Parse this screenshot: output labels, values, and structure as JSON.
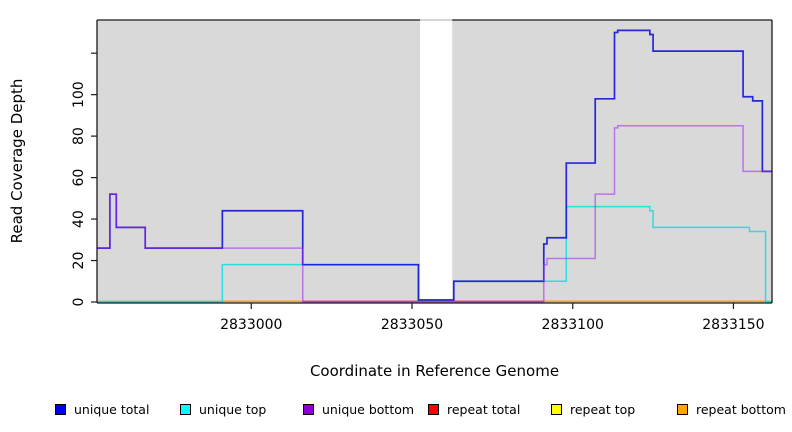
{
  "chart_data": {
    "type": "line",
    "step": true,
    "title": "",
    "xlabel": "Coordinate in Reference Genome",
    "ylabel": "Read Coverage Depth",
    "xlim": [
      2832952,
      2833162
    ],
    "ylim": [
      0,
      136
    ],
    "x_ticks": [
      2833000,
      2833050,
      2833100,
      2833150
    ],
    "y_ticks": [
      0,
      20,
      40,
      60,
      80,
      100
    ],
    "y_unlabeled_ticks": [
      120
    ],
    "grid": false,
    "legend_position": "bottom",
    "plot_bg": "#d9d9d9",
    "frame_color": "#1a1a1a",
    "axis_break": {
      "x0": 2833052.5,
      "x1": 2833062.5,
      "note": "white vertical gap band where coverage drops to ~0"
    },
    "series": [
      {
        "name": "unique total",
        "legend_color": "#0000EE",
        "line_color": "#1818DA",
        "line_opacity": 0.92,
        "z": 2,
        "x": [
          2832952,
          2832956,
          2832958,
          2832967,
          2832991,
          2833016,
          2833052,
          2833063,
          2833091,
          2833092,
          2833098,
          2833107,
          2833113,
          2833114,
          2833124,
          2833125,
          2833153,
          2833156,
          2833159
        ],
        "v": [
          26,
          52,
          36,
          26,
          44,
          18,
          1,
          10,
          28,
          31,
          67,
          98,
          130,
          131,
          129,
          121,
          99,
          97,
          63
        ],
        "x_end": 2833162
      },
      {
        "name": "unique top",
        "legend_color": "#00FFFF",
        "line_color": "#00DDE0",
        "line_opacity": 0.8,
        "z": 1,
        "x": [
          2832952,
          2832991,
          2833052,
          2833063,
          2833098,
          2833124,
          2833125,
          2833155,
          2833160
        ],
        "v": [
          0,
          18,
          1,
          10,
          46,
          44,
          36,
          34,
          0
        ],
        "x_end": 2833162
      },
      {
        "name": "unique bottom",
        "legend_color": "#8B00CC",
        "line_color": "#A020F0",
        "line_opacity": 0.55,
        "z": 3,
        "x": [
          2832952,
          2832956,
          2832958,
          2832967,
          2833016,
          2833091,
          2833092,
          2833107,
          2833113,
          2833114,
          2833153
        ],
        "v": [
          26,
          52,
          36,
          26,
          0,
          18,
          21,
          52,
          84,
          85,
          63
        ],
        "x_end": 2833162
      },
      {
        "name": "repeat total",
        "legend_color": "#FF0000",
        "line_color": "#E8506E",
        "line_opacity": 1,
        "z": 0,
        "x": [
          2832952
        ],
        "v": [
          0
        ],
        "x_end": 2833162
      },
      {
        "name": "repeat top",
        "legend_color": "#FFFF00",
        "line_color": "#FFFF00",
        "line_opacity": 1,
        "z": 0,
        "x": [
          2832952
        ],
        "v": [
          0
        ],
        "x_end": 2833162
      },
      {
        "name": "repeat bottom",
        "legend_color": "#FFA500",
        "line_color": "#FFA500",
        "line_opacity": 1,
        "z": 0,
        "x": [
          2832952
        ],
        "v": [
          0
        ],
        "x_end": 2833162
      }
    ],
    "baseline_segments": [
      {
        "x0": 2832952,
        "x1": 2832991,
        "color": "#7CD47C"
      },
      {
        "x0": 2832991,
        "x1": 2833016,
        "color": "#FFA500"
      },
      {
        "x0": 2833016,
        "x1": 2833091,
        "color": "#E8506E"
      },
      {
        "x0": 2833091,
        "x1": 2833160,
        "color": "#FFA500"
      },
      {
        "x0": 2833160,
        "x1": 2833162,
        "color": "#7CD47C"
      }
    ]
  }
}
